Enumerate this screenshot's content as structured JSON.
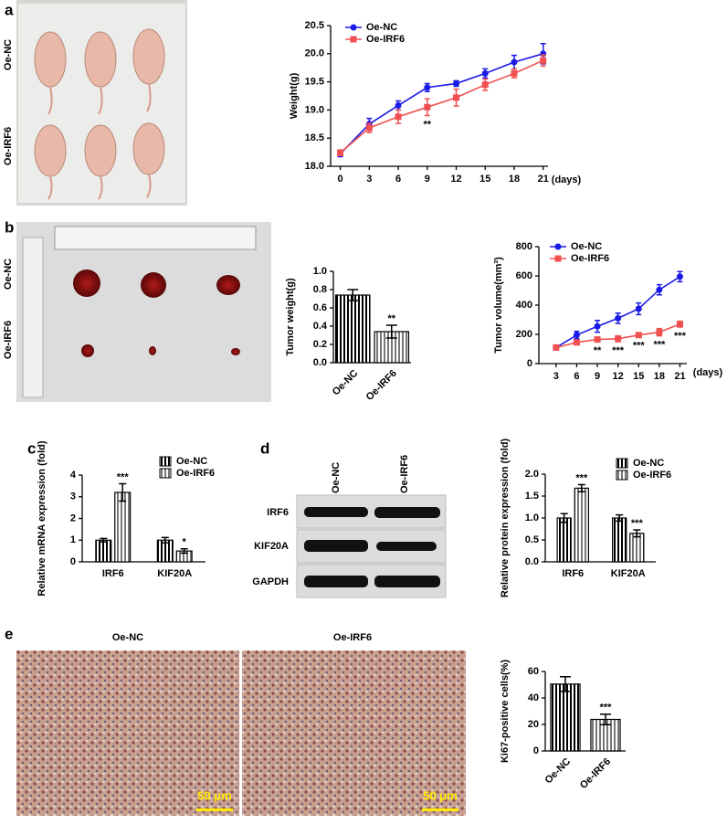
{
  "panels": {
    "labels": [
      "a",
      "b",
      "c",
      "d",
      "e"
    ]
  },
  "photos": {
    "mice": {
      "rows": [
        "Oe-NC",
        "Oe-IRF6"
      ]
    },
    "tumors": {
      "rows": [
        "Oe-NC",
        "Oe-IRF6"
      ]
    }
  },
  "blot": {
    "columns": [
      "Oe-NC",
      "Oe-IRF6"
    ],
    "rows": [
      "IRF6",
      "KIF20A",
      "GAPDH"
    ]
  },
  "histology": {
    "titles": [
      "Oe-NC",
      "Oe-IRF6"
    ],
    "scale_bar": "50 μm"
  },
  "chart_data": [
    {
      "type": "line",
      "ylabel": "Weight(g)",
      "xlabel": "(days)",
      "x": [
        0,
        3,
        6,
        9,
        12,
        15,
        18,
        21
      ],
      "xlim": [
        -1,
        21.5
      ],
      "xticks": [
        0,
        3,
        6,
        9,
        12,
        15,
        18,
        21
      ],
      "ylim": [
        18.0,
        20.5
      ],
      "yticks": [
        {
          "value": 18.0,
          "label": "18.0"
        },
        18.5,
        {
          "value": 19.0,
          "label": "19.0"
        },
        19.5,
        {
          "value": 20.0,
          "label": "20.0"
        },
        20.5
      ],
      "series": [
        {
          "name": "Oe-NC",
          "color": "#1a1ae6",
          "marker": "circle",
          "values": [
            18.22,
            18.75,
            19.08,
            19.4,
            19.47,
            19.65,
            19.85,
            20.0
          ],
          "errors": [
            0.05,
            0.1,
            0.08,
            0.07,
            0.05,
            0.08,
            0.12,
            0.18
          ]
        },
        {
          "name": "Oe-IRF6",
          "color": "#f05050",
          "marker": "square",
          "values": [
            18.24,
            18.68,
            18.88,
            19.05,
            19.22,
            19.45,
            19.65,
            19.88
          ],
          "errors": [
            0.05,
            0.08,
            0.12,
            0.15,
            0.15,
            0.1,
            0.08,
            0.1
          ],
          "annotations": [
            null,
            null,
            null,
            "**",
            null,
            null,
            null,
            null
          ]
        }
      ]
    },
    {
      "type": "bar",
      "ylabel": "Tumor weight(g)",
      "categories": [
        "Oe-NC",
        "Oe-IRF6"
      ],
      "values": [
        0.74,
        0.34
      ],
      "errors": [
        0.06,
        0.07
      ],
      "colors": [
        "#000000",
        "#777777"
      ],
      "annotations": [
        null,
        "**"
      ],
      "ylim": [
        0,
        1.0
      ],
      "yticks": [
        {
          "value": 0,
          "label": "0.0"
        },
        0.2,
        0.4,
        0.6,
        0.8,
        {
          "value": 1.0,
          "label": "1.0"
        }
      ]
    },
    {
      "type": "line",
      "ylabel": "Tumor volume(mm³)",
      "xlabel": "(days)",
      "x": [
        3,
        6,
        9,
        12,
        15,
        18,
        21
      ],
      "xlim": [
        0.5,
        22
      ],
      "xticks": [
        3,
        6,
        9,
        12,
        15,
        18,
        21
      ],
      "ylim": [
        0,
        800
      ],
      "yticks": [
        0,
        200,
        400,
        600,
        800
      ],
      "series": [
        {
          "name": "Oe-NC",
          "color": "#1a1ae6",
          "marker": "circle",
          "values": [
            110,
            195,
            255,
            310,
            375,
            505,
            595
          ],
          "errors": [
            15,
            25,
            40,
            35,
            40,
            35,
            35
          ]
        },
        {
          "name": "Oe-IRF6",
          "color": "#f05050",
          "marker": "square",
          "values": [
            110,
            145,
            165,
            170,
            195,
            215,
            270
          ],
          "errors": [
            10,
            10,
            15,
            20,
            10,
            25,
            20
          ],
          "annotations": [
            null,
            null,
            "**",
            "***",
            "***",
            "***",
            "***"
          ]
        }
      ]
    },
    {
      "type": "grouped_bar",
      "ylabel": "Relative mRNA expression (fold)",
      "categories": [
        "IRF6",
        "KIF20A"
      ],
      "ylim": [
        0,
        4
      ],
      "yticks": [
        0,
        1,
        2,
        3,
        4
      ],
      "series": [
        {
          "name": "Oe-NC",
          "color": "#000000",
          "values": [
            1.0,
            1.0
          ],
          "errors": [
            0.08,
            0.12
          ]
        },
        {
          "name": "Oe-IRF6",
          "color": "#777777",
          "values": [
            3.2,
            0.5
          ],
          "errors": [
            0.4,
            0.1
          ],
          "annotations": [
            "***",
            "*"
          ]
        }
      ]
    },
    {
      "type": "grouped_bar",
      "ylabel": "Relative protein expression (fold)",
      "categories": [
        "IRF6",
        "KIF20A"
      ],
      "ylim": [
        0,
        2.0
      ],
      "yticks": [
        {
          "value": 0,
          "label": "0.0"
        },
        0.5,
        {
          "value": 1.0,
          "label": "1.0"
        },
        1.5,
        {
          "value": 2.0,
          "label": "2.0"
        }
      ],
      "series": [
        {
          "name": "Oe-NC",
          "color": "#000000",
          "values": [
            1.0,
            1.0
          ],
          "errors": [
            0.1,
            0.07
          ]
        },
        {
          "name": "Oe-IRF6",
          "color": "#777777",
          "values": [
            1.68,
            0.65
          ],
          "errors": [
            0.08,
            0.08
          ],
          "annotations": [
            "***",
            "***"
          ]
        }
      ]
    },
    {
      "type": "bar",
      "ylabel": "Ki67-positive cells(%)",
      "categories": [
        "Oe-NC",
        "Oe-IRF6"
      ],
      "values": [
        50.5,
        23.8
      ],
      "errors": [
        5.5,
        4
      ],
      "colors": [
        "#000000",
        "#777777"
      ],
      "annotations": [
        null,
        "***"
      ],
      "ylim": [
        0,
        60
      ],
      "yticks": [
        0,
        20,
        40,
        60
      ]
    }
  ]
}
